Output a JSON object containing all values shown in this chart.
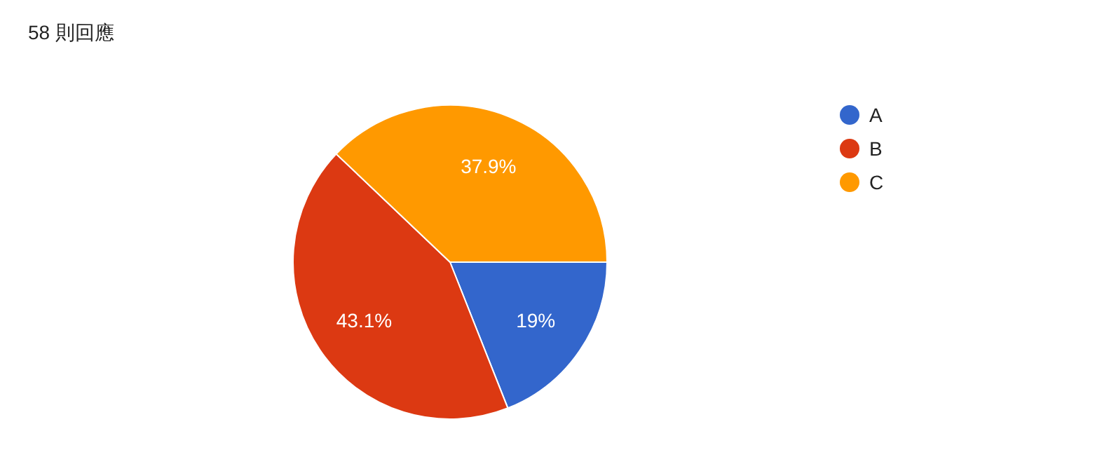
{
  "chart_data": {
    "type": "pie",
    "title": "58 則回應",
    "categories": [
      "A",
      "B",
      "C"
    ],
    "values": [
      19,
      43.1,
      37.9
    ],
    "colors": [
      "#3366cc",
      "#dc3912",
      "#ff9900"
    ],
    "value_labels": [
      "19%",
      "43.1%",
      "37.9%"
    ],
    "legend": "right"
  }
}
